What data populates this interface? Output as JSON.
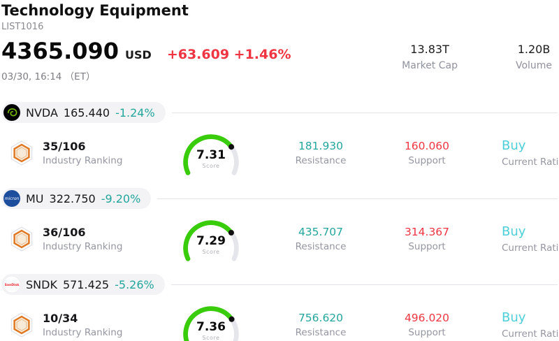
{
  "header": {
    "title": "Technology Equipment",
    "list_id": "LIST1016",
    "price": "4365.090",
    "currency": "USD",
    "change": "+63.609 +1.46%",
    "datetime": "03/30, 16:14 （ET）",
    "stats": [
      {
        "value": "13.83T",
        "label": "Market Cap"
      },
      {
        "value": "1.20B",
        "label": "Volume"
      }
    ]
  },
  "labels": {
    "ranking": "Industry Ranking",
    "score": "Score",
    "resistance": "Resistance",
    "support": "Support",
    "rating": "Current Rating"
  },
  "rows": [
    {
      "ticker": "NVDA",
      "price": "165.440",
      "change": "-1.24%",
      "logo_text": "",
      "ranking": "35/106",
      "score": 7.31,
      "score_display": "7.31",
      "resistance": "181.930",
      "support": "160.060",
      "rating": "Buy"
    },
    {
      "ticker": "MU",
      "price": "322.750",
      "change": "-9.20%",
      "logo_text": "micron",
      "ranking": "36/106",
      "score": 7.29,
      "score_display": "7.29",
      "resistance": "435.707",
      "support": "314.367",
      "rating": "Buy"
    },
    {
      "ticker": "SNDK",
      "price": "571.425",
      "change": "-5.26%",
      "logo_text": "SanDisk",
      "ranking": "10/34",
      "score": 7.36,
      "score_display": "7.36",
      "resistance": "756.620",
      "support": "496.020",
      "rating": "Buy"
    }
  ],
  "colors": {
    "teal": "#22a69b",
    "red": "#ef3442",
    "cyan": "#4bcfd8",
    "gauge_fill": "#39cc0a",
    "gauge_track": "#e5e5ec",
    "label_gray": "#9496a0",
    "pill_bg": "#f3f3f5",
    "rule": "#e3e3e9",
    "nvda_green": "#76b900",
    "mu_blue": "#1c4e9d",
    "sndk_red": "#e3242b",
    "badge_orange": "#e0761f"
  }
}
